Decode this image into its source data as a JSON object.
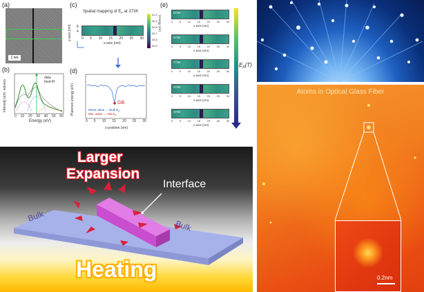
{
  "panels": {
    "a": {
      "label": "(a)",
      "scale": "1 nm"
    },
    "b": {
      "label": "(b)",
      "ylabel": "Intensity (arb. values)",
      "xlabel": "Energy (eV)",
      "legend": [
        "data",
        "best-fit"
      ],
      "xticks": [
        "0",
        "10",
        "20",
        "30",
        "40",
        "50",
        "60"
      ]
    },
    "c": {
      "label": "(c)",
      "title": "Spatial mapping of E",
      "title_sub": "P",
      "title_tail": " at 373K",
      "ylabel": "y-axis (nm)",
      "xlabel": "x-axis (nm)",
      "yticks": [
        "0",
        "4",
        "8"
      ],
      "xticks": [
        "0",
        "5",
        "10",
        "15",
        "20",
        "25",
        "30"
      ],
      "cbar_label": "Energy (eV)",
      "cbar_ticks": [
        "31.0",
        "30.9",
        "30.8",
        "30.7",
        "30.6",
        "30.5"
      ]
    },
    "d": {
      "label": "(d)",
      "ylabel": "Plasmon energy (eV)",
      "xlabel": "x-position (nm)",
      "yticks": [
        "30.9",
        "30.8",
        "30.7",
        "30.6",
        "30.5",
        "30.4",
        "30.3"
      ],
      "xticks": [
        "0",
        "5",
        "10",
        "15",
        "20",
        "25",
        "30"
      ],
      "gb_label": "GB",
      "note1": "Mean value → Bulk E",
      "note1_sub": "P",
      "note2": "Min. value → GB E",
      "note2_sub": "P"
    },
    "e": {
      "label": "(e)",
      "maps": [
        "873K",
        "673K",
        "773K",
        "473K",
        "373K"
      ],
      "xlabel": "x-axis (nm)",
      "xticks": [
        "0",
        "5",
        "10",
        "15",
        "20",
        "25",
        "30"
      ],
      "arrow_label": "E",
      "arrow_sub": "P",
      "arrow_tail": "(T)"
    }
  },
  "illustration": {
    "title_line1": "Larger",
    "title_line2": "Expansion",
    "interface": "Interface",
    "bulk_left": "Bulk",
    "bulk_right": "Bulk",
    "heating": "Heating"
  },
  "fiber_photo": {
    "alt": "optical fibers"
  },
  "atoms": {
    "title": "Atoms in Optical Glass Fiber",
    "scale": "0.2nm"
  },
  "colors": {
    "title_red": "#e8232f",
    "arrow_red": "#d9203b",
    "heating": "#ffb000",
    "slab": "#a7b2ea",
    "interface": "#d65bd6"
  }
}
